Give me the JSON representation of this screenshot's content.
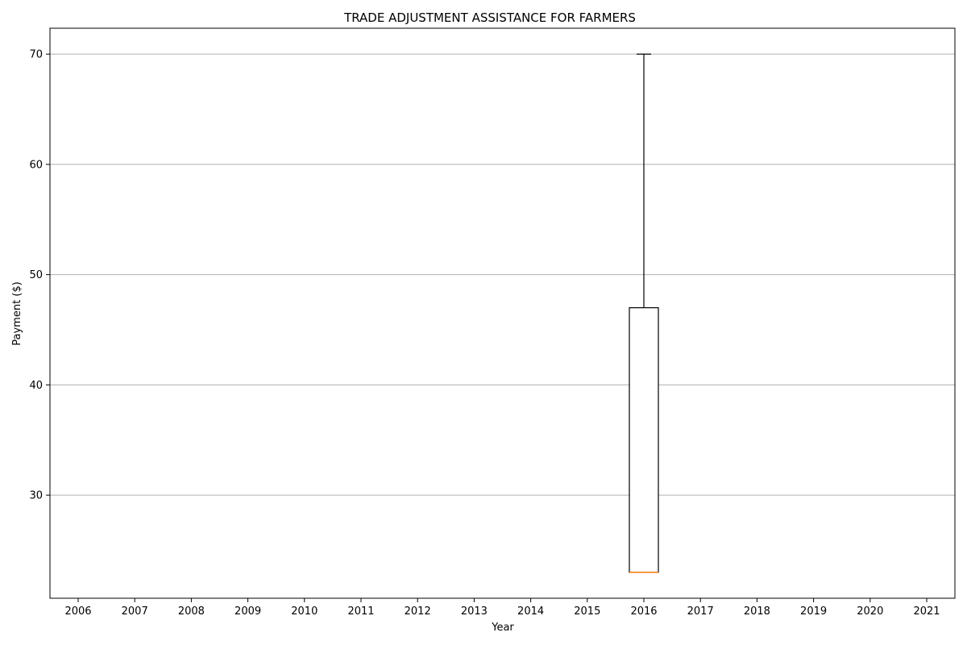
{
  "chart_data": {
    "type": "box",
    "title": "TRADE ADJUSTMENT ASSISTANCE FOR FARMERS",
    "xlabel": "Year",
    "ylabel": "Payment ($)",
    "categories": [
      "2006",
      "2007",
      "2008",
      "2009",
      "2010",
      "2011",
      "2012",
      "2013",
      "2014",
      "2015",
      "2016",
      "2017",
      "2018",
      "2019",
      "2020",
      "2021"
    ],
    "yticks": [
      "30",
      "40",
      "50",
      "60",
      "70"
    ],
    "ylim": [
      20.65,
      72.35
    ],
    "grid": "y",
    "boxes": [
      {
        "category": "2016",
        "whisker_low": 23,
        "q1": 23,
        "median": 23,
        "q3": 47,
        "whisker_high": 70
      }
    ],
    "colors": {
      "box": "#000000",
      "median": "#ff7f0e",
      "grid": "#b0b0b0"
    }
  }
}
